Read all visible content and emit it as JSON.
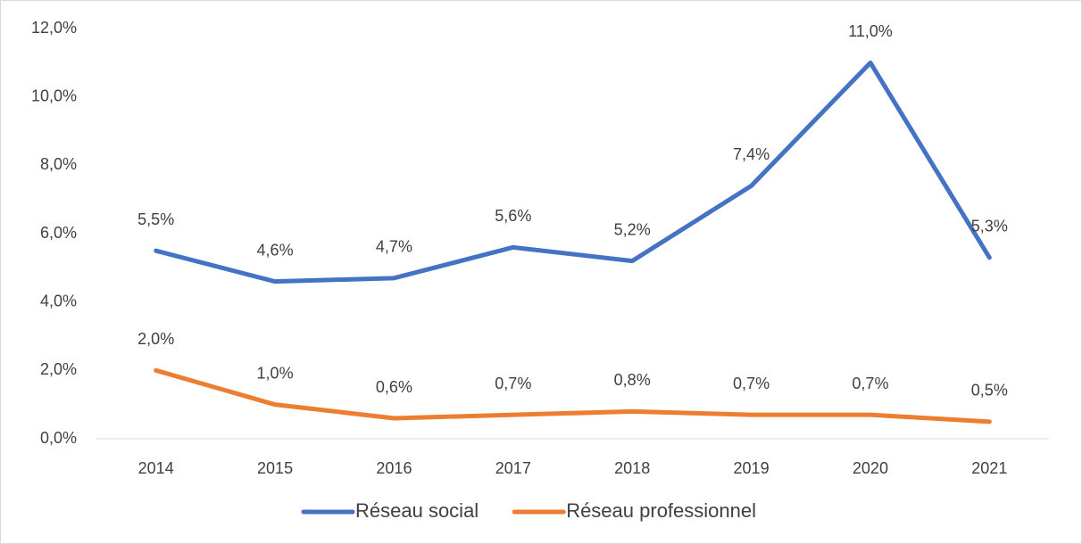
{
  "chart_data": {
    "type": "line",
    "categories": [
      "2014",
      "2015",
      "2016",
      "2017",
      "2018",
      "2019",
      "2020",
      "2021"
    ],
    "series": [
      {
        "name": "Réseau social",
        "color": "#4472c4",
        "values": [
          5.5,
          4.6,
          4.7,
          5.6,
          5.2,
          7.4,
          11.0,
          5.3
        ],
        "value_labels": [
          "5,5%",
          "4,6%",
          "4,7%",
          "5,6%",
          "5,2%",
          "7,4%",
          "11,0%",
          "5,3%"
        ]
      },
      {
        "name": "Réseau professionnel",
        "color": "#ed7d31",
        "values": [
          2.0,
          1.0,
          0.6,
          0.7,
          0.8,
          0.7,
          0.7,
          0.5
        ],
        "value_labels": [
          "2,0%",
          "1,0%",
          "0,6%",
          "0,7%",
          "0,8%",
          "0,7%",
          "0,7%",
          "0,5%"
        ]
      }
    ],
    "ylim": [
      0,
      12
    ],
    "yticks": [
      {
        "value": 0,
        "label": "0,0%"
      },
      {
        "value": 2,
        "label": "2,0%"
      },
      {
        "value": 4,
        "label": "4,0%"
      },
      {
        "value": 6,
        "label": "6,0%"
      },
      {
        "value": 8,
        "label": "8,0%"
      },
      {
        "value": 10,
        "label": "10,0%"
      },
      {
        "value": 12,
        "label": "12,0%"
      }
    ],
    "grid": false,
    "legend": "bottom"
  }
}
